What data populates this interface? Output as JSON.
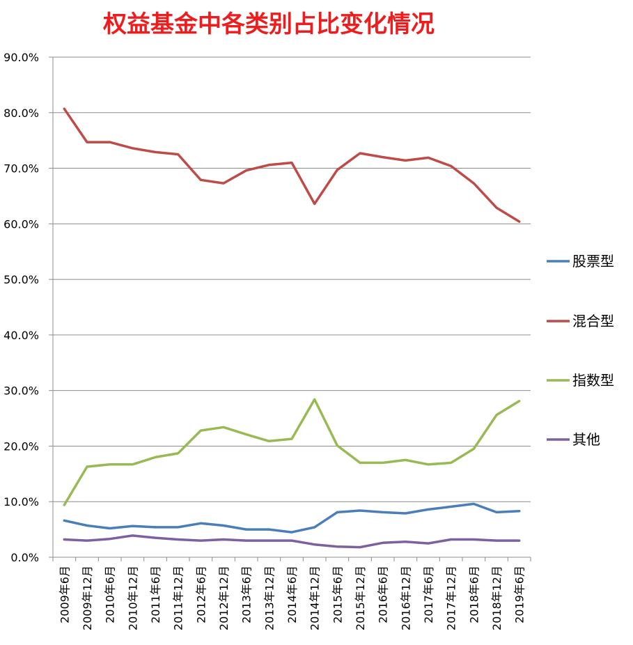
{
  "chart_data": {
    "type": "line",
    "title": "权益基金中各类别占比变化情况",
    "title_color": "#ee1c1c",
    "x": [
      "2009年6月",
      "2009年12月",
      "2010年6月",
      "2010年12月",
      "2011年6月",
      "2011年12月",
      "2012年6月",
      "2012年12月",
      "2013年6月",
      "2013年12月",
      "2014年6月",
      "2014年12月",
      "2015年6月",
      "2015年12月",
      "2016年6月",
      "2016年12月",
      "2017年6月",
      "2017年12月",
      "2018年6月",
      "2018年12月",
      "2019年6月"
    ],
    "ylim": [
      0,
      90
    ],
    "yticks": [
      "0.0%",
      "10.0%",
      "20.0%",
      "30.0%",
      "40.0%",
      "50.0%",
      "60.0%",
      "70.0%",
      "80.0%",
      "90.0%"
    ],
    "grid": true,
    "legend_position": "right",
    "series": [
      {
        "name": "股票型",
        "color": "#4a7ebb",
        "values": [
          6.6,
          5.7,
          5.2,
          5.6,
          5.4,
          5.4,
          6.1,
          5.7,
          5.0,
          5.0,
          4.5,
          5.4,
          8.1,
          8.4,
          8.1,
          7.9,
          8.6,
          9.1,
          9.6,
          8.1,
          8.3
        ]
      },
      {
        "name": "混合型",
        "color": "#be4b48",
        "values": [
          80.7,
          74.7,
          74.7,
          73.6,
          72.9,
          72.5,
          67.9,
          67.3,
          69.6,
          70.6,
          71.0,
          63.6,
          69.7,
          72.7,
          72.0,
          71.4,
          71.9,
          70.4,
          67.3,
          62.9,
          60.4
        ]
      },
      {
        "name": "指数型",
        "color": "#98b954",
        "values": [
          9.4,
          16.3,
          16.7,
          16.7,
          18.0,
          18.7,
          22.8,
          23.4,
          22.1,
          20.9,
          21.3,
          28.4,
          20.1,
          17.0,
          17.0,
          17.5,
          16.7,
          17.0,
          19.5,
          25.6,
          28.1
        ]
      },
      {
        "name": "其他",
        "color": "#7d60a0",
        "values": [
          3.2,
          3.0,
          3.3,
          3.9,
          3.5,
          3.2,
          3.0,
          3.2,
          3.0,
          3.0,
          3.0,
          2.3,
          1.9,
          1.8,
          2.6,
          2.8,
          2.5,
          3.2,
          3.2,
          3.0,
          3.0
        ]
      }
    ]
  }
}
